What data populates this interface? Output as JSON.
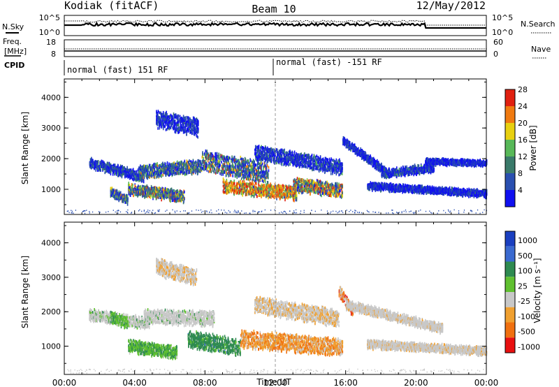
{
  "header": {
    "site": "Kodiak (fitACF)",
    "beam": "Beam 10",
    "date": "12/May/2012"
  },
  "strips": {
    "nsky_label": "N.Sky",
    "nsearch_label": "N.Search",
    "nsky_ticks": [
      "10^5",
      "10^0"
    ],
    "nsearch_ticks": [
      "10^5",
      "10^0"
    ],
    "freq_label_line1": "Freq.",
    "freq_label_line2": "[MHz]",
    "freq_ticks": [
      "18",
      "8"
    ],
    "nave_label": "Nave",
    "nave_ticks": [
      "60",
      "0"
    ],
    "cpid_label": "CPID",
    "cpid_entries": [
      "normal (fast) 151 RF",
      "normal (fast) -151 RF"
    ]
  },
  "chart_data": [
    {
      "type": "heatmap",
      "name": "power-panel",
      "ylabel": "Slant Range [km]",
      "ylim": [
        180,
        4600
      ],
      "yticks": [
        "1000",
        "2000",
        "3000",
        "4000"
      ],
      "xlim_hours": [
        0,
        24
      ],
      "colorbar_label": "Power [dB]",
      "colorbar_ticks": [
        "4",
        "8",
        "12",
        "16",
        "20",
        "24",
        "28"
      ],
      "colors": [
        "#1010f0",
        "#2a4fb0",
        "#3a7a6a",
        "#58b858",
        "#e8d010",
        "#f07a10",
        "#e02010"
      ]
    },
    {
      "type": "heatmap",
      "name": "velocity-panel",
      "ylabel": "Slant Range [km]",
      "ylim": [
        180,
        4600
      ],
      "yticks": [
        "1000",
        "2000",
        "3000",
        "4000"
      ],
      "xlim_hours": [
        0,
        24
      ],
      "colorbar_label": "Velocity [m s⁻¹]",
      "colorbar_ticks": [
        "1000",
        "500",
        "100",
        "25",
        "-25",
        "-100",
        "-500",
        "-1000"
      ],
      "colors": [
        "#1a3fc0",
        "#3a6ad0",
        "#2e8a50",
        "#60c030",
        "#c8c8c8",
        "#f0a030",
        "#f07010",
        "#e81010"
      ]
    }
  ],
  "x_axis": {
    "ticks": [
      "00:00",
      "04:00",
      "08:00",
      "12:00",
      "16:00",
      "20:00",
      "00:00"
    ],
    "label": "Time UT"
  }
}
